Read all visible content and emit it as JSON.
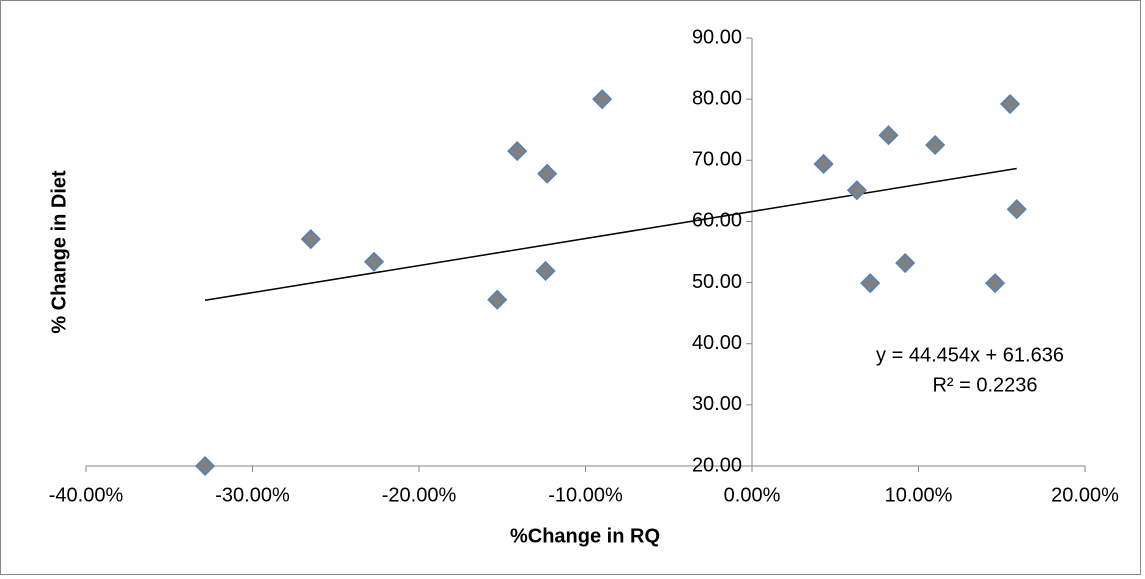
{
  "chart_data": {
    "type": "scatter",
    "x_label": "%Change in RQ",
    "y_label": "% Change in Diet",
    "x": [
      -32.85,
      -26.5,
      -22.7,
      -15.3,
      -14.1,
      -12.4,
      -12.3,
      -9.0,
      4.3,
      6.3,
      7.1,
      8.2,
      9.2,
      11.0,
      14.6,
      15.5,
      15.9
    ],
    "series": [
      {
        "color": "#808080",
        "values": [
          20.0,
          57.1,
          53.4,
          47.2,
          71.5,
          51.9,
          67.8,
          80.0,
          69.4,
          65.1,
          49.9,
          74.1,
          53.2,
          72.5,
          49.9,
          79.2,
          62.0
        ]
      }
    ],
    "marker_edge_color": "#4f81bd",
    "trendline": true,
    "annotations": [
      "y = 44.454x + 61.636",
      "R² = 0.2236"
    ],
    "xlim": [
      -40,
      20
    ],
    "xticks": [
      {
        "value": -40,
        "label": "-40.00%"
      },
      {
        "value": -30,
        "label": "-30.00%"
      },
      {
        "value": -20,
        "label": "-20.00%"
      },
      {
        "value": -10,
        "label": "-10.00%"
      },
      {
        "value": 0,
        "label": "0.00%"
      },
      {
        "value": 10,
        "label": "10.00%"
      },
      {
        "value": 20,
        "label": "20.00%"
      }
    ],
    "ylim": [
      20,
      90
    ],
    "yticks": [
      {
        "value": 20,
        "label": "20.00"
      },
      {
        "value": 30,
        "label": "30.00"
      },
      {
        "value": 40,
        "label": "40.00"
      },
      {
        "value": 50,
        "label": "50.00"
      },
      {
        "value": 60,
        "label": "60.00"
      },
      {
        "value": 70,
        "label": "70.00"
      },
      {
        "value": 80,
        "label": "80.00"
      },
      {
        "value": 90,
        "label": "90.00"
      }
    ],
    "grid": false
  }
}
